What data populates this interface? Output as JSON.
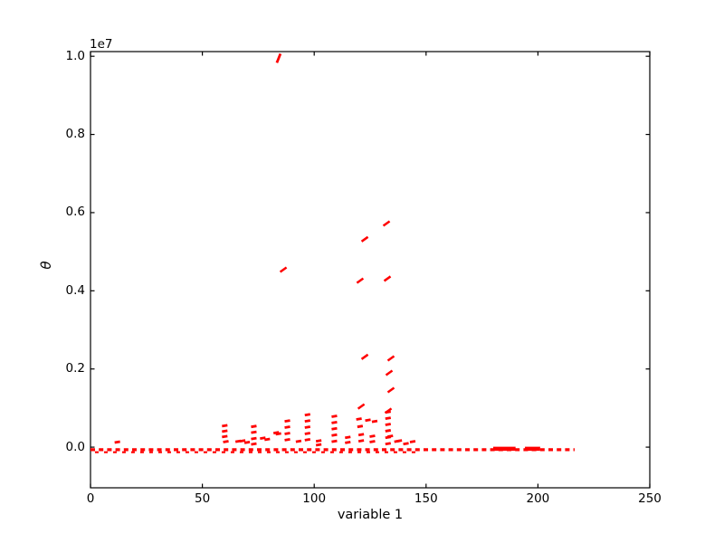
{
  "chart_data": {
    "type": "scatter",
    "title": "",
    "xlabel": "variable 1",
    "ylabel": "θ",
    "offset_text": "1e7",
    "legend": "none",
    "grid": false,
    "marker": "small red dash",
    "marker_color": "#ff0000",
    "axis_color": "#000000",
    "xlim": [
      0,
      250
    ],
    "ylim": [
      -1040000,
      10120000
    ],
    "x_tick_values": [
      0,
      50,
      100,
      150,
      200,
      250
    ],
    "x_tick_labels": [
      "0",
      "50",
      "100",
      "150",
      "200",
      "250"
    ],
    "y_tick_values": [
      0,
      2000000,
      4000000,
      6000000,
      8000000,
      10000000
    ],
    "y_tick_labels": [
      "0.0",
      "0.2",
      "0.4",
      "0.6",
      "0.8",
      "1.0"
    ],
    "baseline": {
      "x_start": 0,
      "x_end": 216.4,
      "y": 0,
      "style": "dashed"
    },
    "baseline_secondary": {
      "x_start": 2,
      "x_end": 146,
      "y": 0,
      "style": "dashed"
    },
    "dense_segments": [
      {
        "x_start": 180,
        "x_end": 190,
        "y": 0
      },
      {
        "x_start": 194.2,
        "x_end": 201,
        "y": 0
      }
    ],
    "points": [
      [
        12,
        130000
      ],
      [
        60,
        550000
      ],
      [
        60,
        410000
      ],
      [
        60,
        270000
      ],
      [
        60.5,
        140000
      ],
      [
        66,
        150000
      ],
      [
        68,
        160000
      ],
      [
        70,
        120000
      ],
      [
        73,
        530000
      ],
      [
        73,
        380000
      ],
      [
        73,
        220000
      ],
      [
        73,
        80000
      ],
      [
        77,
        230000
      ],
      [
        79,
        200000
      ],
      [
        83,
        370000
      ],
      [
        84,
        340000
      ],
      [
        88,
        670000
      ],
      [
        88,
        510000
      ],
      [
        88,
        350000
      ],
      [
        88,
        190000
      ],
      [
        93,
        150000
      ],
      [
        97,
        830000
      ],
      [
        97,
        670000
      ],
      [
        97,
        510000
      ],
      [
        97,
        350000
      ],
      [
        97,
        190000
      ],
      [
        102,
        160000
      ],
      [
        102,
        60000
      ],
      [
        109,
        790000
      ],
      [
        109,
        630000
      ],
      [
        109,
        470000
      ],
      [
        109,
        310000
      ],
      [
        109,
        150000
      ],
      [
        115,
        250000
      ],
      [
        115,
        120000
      ],
      [
        120,
        720000
      ],
      [
        120.5,
        530000
      ],
      [
        121,
        320000
      ],
      [
        121,
        160000
      ],
      [
        124,
        690000
      ],
      [
        127,
        660000
      ],
      [
        126,
        280000
      ],
      [
        126,
        140000
      ],
      [
        133,
        900000
      ],
      [
        133,
        740000
      ],
      [
        133,
        580000
      ],
      [
        133,
        420000
      ],
      [
        133,
        250000
      ],
      [
        133,
        90000
      ],
      [
        134,
        280000
      ],
      [
        137,
        150000
      ],
      [
        138,
        160000
      ],
      [
        141,
        90000
      ],
      [
        144,
        140000
      ],
      [
        84.1,
        9950000,
        "steep"
      ],
      [
        86.2,
        4540000,
        "slant"
      ],
      [
        120.5,
        4260000,
        "slant"
      ],
      [
        121.0,
        1040000,
        "slant"
      ],
      [
        122.6,
        5320000,
        "slant"
      ],
      [
        122.6,
        2310000,
        "slant"
      ],
      [
        132.3,
        5720000,
        "slant"
      ],
      [
        132.7,
        4310000,
        "slant"
      ],
      [
        133.1,
        930000,
        "slant"
      ],
      [
        133.5,
        1900000,
        "slant"
      ],
      [
        134.3,
        2270000,
        "slant"
      ],
      [
        134.3,
        1460000,
        "slant"
      ]
    ]
  }
}
